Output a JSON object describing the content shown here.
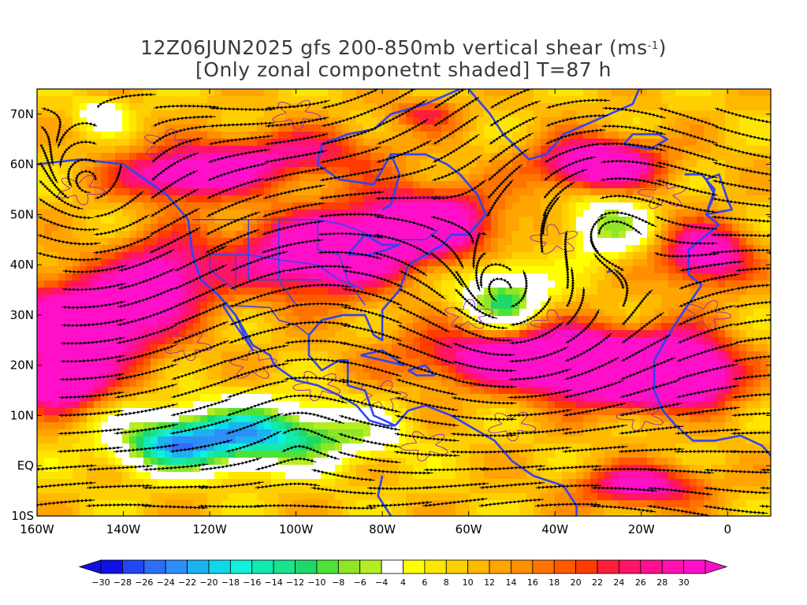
{
  "title": {
    "line1_prefix": "12Z06JUN2025 gfs 200-850mb vertical shear (ms",
    "line1_sup": "-1",
    "line1_suffix": ")",
    "line2": "[Only zonal componetnt shaded] T=87 h"
  },
  "map": {
    "lon_range": [
      -160,
      10
    ],
    "lat_range": [
      -10,
      75
    ],
    "lat_ticks": [
      {
        "lat": 70,
        "label": "70N"
      },
      {
        "lat": 60,
        "label": "60N"
      },
      {
        "lat": 50,
        "label": "50N"
      },
      {
        "lat": 40,
        "label": "40N"
      },
      {
        "lat": 30,
        "label": "30N"
      },
      {
        "lat": 20,
        "label": "20N"
      },
      {
        "lat": 10,
        "label": "10N"
      },
      {
        "lat": 0,
        "label": "EQ"
      },
      {
        "lat": -10,
        "label": "10S"
      }
    ],
    "lon_ticks": [
      {
        "lon": -160,
        "label": "160W"
      },
      {
        "lon": -140,
        "label": "140W"
      },
      {
        "lon": -120,
        "label": "120W"
      },
      {
        "lon": -100,
        "label": "100W"
      },
      {
        "lon": -80,
        "label": "80W"
      },
      {
        "lon": -60,
        "label": "60W"
      },
      {
        "lon": -40,
        "label": "40W"
      },
      {
        "lon": -20,
        "label": "20W"
      },
      {
        "lon": 0,
        "label": "0"
      }
    ],
    "colors": {
      "coastline": "#3344ee",
      "contour": "#9922bb",
      "streamline": "#000000"
    }
  },
  "colorbar": {
    "values": [
      -30,
      -28,
      -26,
      -24,
      -22,
      -20,
      -18,
      -16,
      -14,
      -12,
      -10,
      -8,
      -6,
      -4,
      4,
      6,
      8,
      10,
      12,
      14,
      16,
      18,
      20,
      22,
      24,
      26,
      28,
      30
    ],
    "colors": [
      "#1010e6",
      "#2246f2",
      "#2d6ef7",
      "#2e8df8",
      "#1cb2f0",
      "#0ed8ea",
      "#10f0dc",
      "#14eab0",
      "#18e48e",
      "#1ed86a",
      "#4ee238",
      "#8ee626",
      "#b4ee22",
      "#ffffff",
      "#ffff00",
      "#ffe600",
      "#ffd000",
      "#ffba00",
      "#ffa400",
      "#ff8e00",
      "#ff7400",
      "#ff5a00",
      "#ff3c00",
      "#ff1e3c",
      "#ff1468",
      "#ff1090",
      "#ff10b0",
      "#ff10c8"
    ]
  }
}
